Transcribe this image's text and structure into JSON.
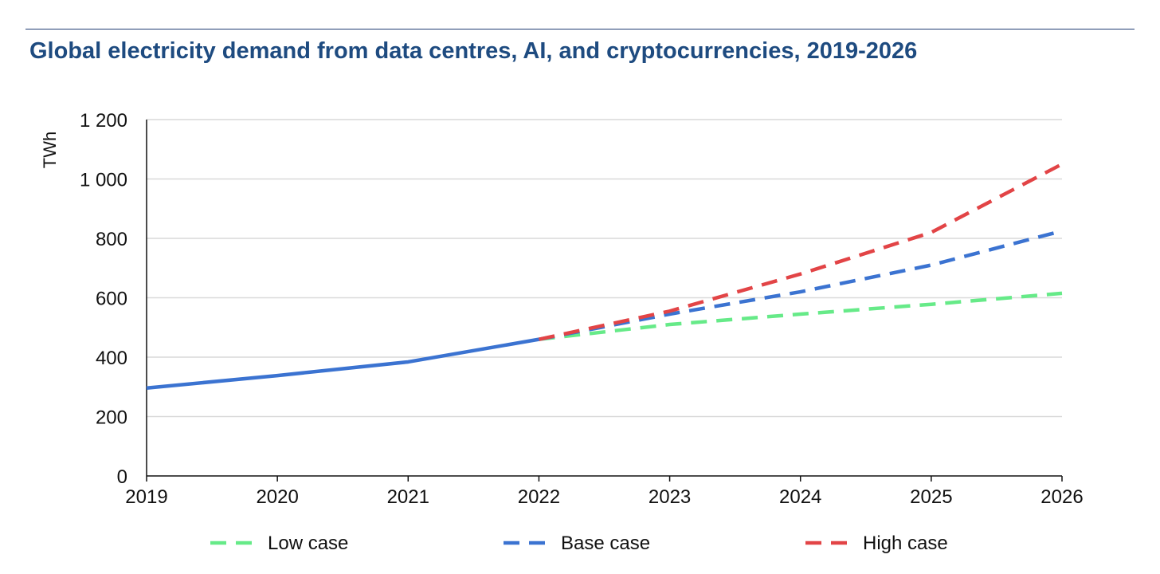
{
  "chart_data": {
    "type": "line",
    "title": "Global electricity demand from data centres, AI, and cryptocurrencies, 2019-2026",
    "xlabel": "",
    "ylabel": "TWh",
    "x": [
      2019,
      2020,
      2021,
      2022,
      2023,
      2024,
      2025,
      2026
    ],
    "xlim": [
      2019,
      2026
    ],
    "ylim": [
      0,
      1200
    ],
    "yticks": [
      0,
      200,
      400,
      600,
      800,
      1000,
      1200
    ],
    "ytick_labels": [
      "0",
      "200",
      "400",
      "600",
      "800",
      "1 000",
      "1 200"
    ],
    "grid": true,
    "legend_position": "bottom",
    "historical": {
      "x": [
        2019,
        2020,
        2021,
        2022
      ],
      "values": [
        296,
        338,
        384,
        460
      ],
      "color": "#3b73d1"
    },
    "series": [
      {
        "name": "Low case",
        "x": [
          2022,
          2023,
          2024,
          2025,
          2026
        ],
        "values": [
          460,
          510,
          545,
          578,
          615
        ],
        "color": "#66ea88",
        "dash": "dashed"
      },
      {
        "name": "Base case",
        "x": [
          2022,
          2023,
          2024,
          2025,
          2026
        ],
        "values": [
          460,
          545,
          620,
          710,
          825
        ],
        "color": "#3b73d1",
        "dash": "dashed"
      },
      {
        "name": "High case",
        "x": [
          2022,
          2023,
          2024,
          2025,
          2026
        ],
        "values": [
          460,
          555,
          680,
          820,
          1050
        ],
        "color": "#e24446",
        "dash": "dashed"
      }
    ]
  }
}
